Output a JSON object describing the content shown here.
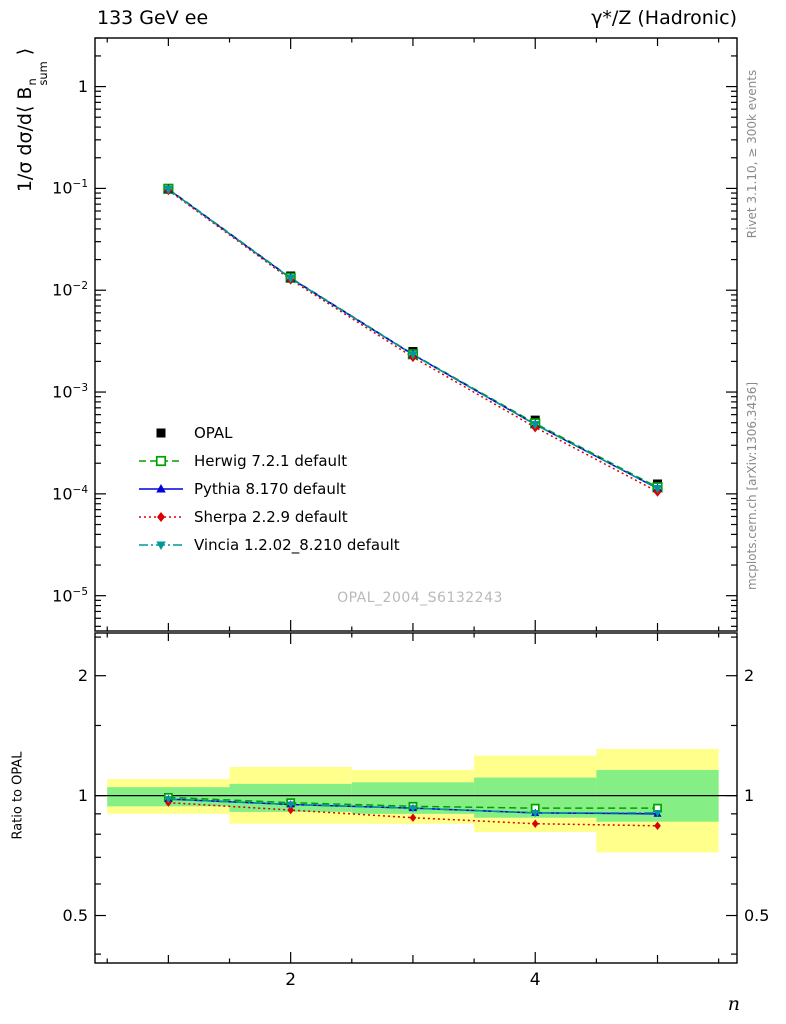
{
  "header": {
    "title_left": "133 GeV ee",
    "title_right": "γ*/Z (Hadronic)"
  },
  "side_texts": {
    "rivet": "Rivet 3.1.10, ≥ 300k events",
    "mcplots": "mcplots.cern.ch [arXiv:1306.3436]"
  },
  "watermark": "OPAL_2004_S6132243",
  "xlabel": "n",
  "main_ylabel": {
    "pre": "1/σ dσ/d⟨ B",
    "sup": "n",
    "sub": "sum",
    "post": " ⟩"
  },
  "ratio_ylabel": "Ratio to OPAL",
  "chart_data": [
    {
      "type": "line",
      "panel": "main",
      "title": "",
      "x": [
        1,
        2,
        3,
        4,
        5
      ],
      "xlim": [
        0.4,
        5.65
      ],
      "xticks": [
        2,
        4
      ],
      "ylog": true,
      "ylim": [
        4.5e-06,
        3.0
      ],
      "legend_position": "inside-left-bottom",
      "series": [
        {
          "name": "OPAL",
          "color": "#000000",
          "marker": "square-filled",
          "line": "none",
          "values": [
            0.1,
            0.0138,
            0.0025,
            0.00053,
            0.000125
          ]
        },
        {
          "name": "Herwig 7.2.1 default",
          "color": "#00a000",
          "marker": "square-open",
          "line": "dashed",
          "values": [
            0.099,
            0.01325,
            0.00235,
            0.000493,
            0.000116
          ]
        },
        {
          "name": "Pythia 8.170 default",
          "color": "#0000dd",
          "marker": "triangle-up",
          "line": "solid",
          "values": [
            0.098,
            0.01311,
            0.00233,
            0.00048,
            0.000113
          ]
        },
        {
          "name": "Sherpa 2.2.9 default",
          "color": "#dd0000",
          "marker": "diamond",
          "line": "dotted",
          "values": [
            0.096,
            0.0127,
            0.0022,
            0.00045,
            0.000105
          ]
        },
        {
          "name": "Vincia 1.2.02_8.210 default",
          "color": "#009999",
          "marker": "triangle-down",
          "line": "dashdot",
          "values": [
            0.098,
            0.01311,
            0.00233,
            0.00048,
            0.000113
          ]
        }
      ]
    },
    {
      "type": "ratio",
      "panel": "ratio",
      "reference": "OPAL",
      "x": [
        1,
        2,
        3,
        4,
        5
      ],
      "xlim": [
        0.4,
        5.65
      ],
      "xticks": [
        2,
        4
      ],
      "ylog": true,
      "ylim": [
        0.38,
        2.56
      ],
      "yticks_major": [
        0.5,
        1,
        2
      ],
      "yticks_minor": [
        0.4,
        0.6,
        0.7,
        0.8,
        0.9,
        1.5,
        2.5
      ],
      "bin_edges": [
        0.5,
        1.5,
        2.5,
        3.5,
        4.5,
        5.5
      ],
      "bands": {
        "outer": {
          "color": "#ffff8c",
          "lo": [
            0.9,
            0.85,
            0.85,
            0.81,
            0.72
          ],
          "hi": [
            1.1,
            1.18,
            1.16,
            1.26,
            1.31
          ]
        },
        "inner": {
          "color": "#85ef85",
          "lo": [
            0.94,
            0.91,
            0.9,
            0.88,
            0.86
          ],
          "hi": [
            1.05,
            1.07,
            1.08,
            1.11,
            1.16
          ]
        }
      },
      "series": [
        {
          "name": "Herwig 7.2.1 default",
          "color": "#00a000",
          "marker": "square-open",
          "line": "dashed",
          "values": [
            0.99,
            0.96,
            0.94,
            0.93,
            0.93
          ]
        },
        {
          "name": "Pythia 8.170 default",
          "color": "#0000dd",
          "marker": "triangle-up",
          "line": "solid",
          "values": [
            0.98,
            0.95,
            0.93,
            0.905,
            0.9
          ]
        },
        {
          "name": "Sherpa 2.2.9 default",
          "color": "#dd0000",
          "marker": "diamond",
          "line": "dotted",
          "values": [
            0.96,
            0.92,
            0.88,
            0.85,
            0.84
          ]
        },
        {
          "name": "Vincia 1.2.02_8.210 default",
          "color": "#009999",
          "marker": "triangle-down",
          "line": "dashdot",
          "values": [
            0.98,
            0.95,
            0.93,
            0.905,
            0.905
          ]
        }
      ]
    }
  ]
}
